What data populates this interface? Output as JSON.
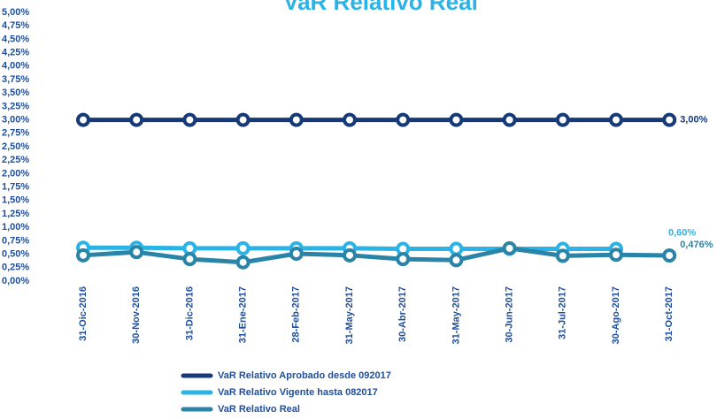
{
  "chart_data": {
    "type": "line",
    "title": "VaR Relativo Real",
    "categories": [
      "31-Oic-2016",
      "30-Nov-2016",
      "31-Dic-2016",
      "31-Ene-2017",
      "28-Feb-2017",
      "31-May-2017",
      "30-Abr-2017",
      "31-May-2017",
      "30-Jun-2017",
      "31-Jul-2017",
      "30-Ago-2017",
      "31-Oct-2017"
    ],
    "series": [
      {
        "name": "VaR Relativo Aprobado desde 092017",
        "color": "#163a78",
        "values": [
          3,
          3,
          3,
          3,
          3,
          3,
          3,
          3,
          3,
          3,
          3,
          3
        ],
        "value_labels": [
          null,
          null,
          null,
          null,
          null,
          null,
          null,
          null,
          null,
          null,
          null,
          "3,00%"
        ]
      },
      {
        "name": "VaR Relativo Vigente hasta 082017",
        "color": "#2bb3e6",
        "values": [
          0.62,
          0.62,
          0.61,
          0.61,
          0.61,
          0.61,
          0.6,
          0.6,
          0.6,
          0.6,
          0.6,
          null
        ],
        "value_labels": [
          null,
          null,
          null,
          null,
          null,
          null,
          null,
          null,
          null,
          null,
          "0,60%",
          null
        ]
      },
      {
        "name": "VaR Relativo Real",
        "color": "#2a84a8",
        "values": [
          0.48,
          0.54,
          0.41,
          0.35,
          0.51,
          0.48,
          0.41,
          0.39,
          0.61,
          0.47,
          0.49,
          0.476
        ],
        "value_labels": [
          null,
          null,
          null,
          null,
          null,
          null,
          null,
          null,
          null,
          null,
          null,
          "0,476%"
        ]
      }
    ],
    "ylim": [
      0,
      5
    ],
    "yticks": [
      {
        "value": 0,
        "label": "0,00%"
      },
      {
        "value": 0.25,
        "label": "0,25%"
      },
      {
        "value": 0.5,
        "label": "0,50%"
      },
      {
        "value": 0.75,
        "label": "0,75%"
      },
      {
        "value": 1,
        "label": "1,00%"
      },
      {
        "value": 1.25,
        "label": "1,25%"
      },
      {
        "value": 1.5,
        "label": "1,50%"
      },
      {
        "value": 1.75,
        "label": "1,75%"
      },
      {
        "value": 2,
        "label": "2,00%"
      },
      {
        "value": 2.25,
        "label": "2,25%"
      },
      {
        "value": 2.5,
        "label": "2,50%"
      },
      {
        "value": 2.75,
        "label": "2,75%"
      },
      {
        "value": 3,
        "label": "3,00%"
      },
      {
        "value": 3.25,
        "label": "3,25%"
      },
      {
        "value": 3.5,
        "label": "3,50%"
      },
      {
        "value": 3.75,
        "label": "3,75%"
      },
      {
        "value": 4,
        "label": "4,00%"
      },
      {
        "value": 4.25,
        "label": "4,25%"
      },
      {
        "value": 4.5,
        "label": "4,50%"
      },
      {
        "value": 4.75,
        "label": "4,75%"
      },
      {
        "value": 5,
        "label": "5,00%"
      }
    ],
    "grid": false
  }
}
